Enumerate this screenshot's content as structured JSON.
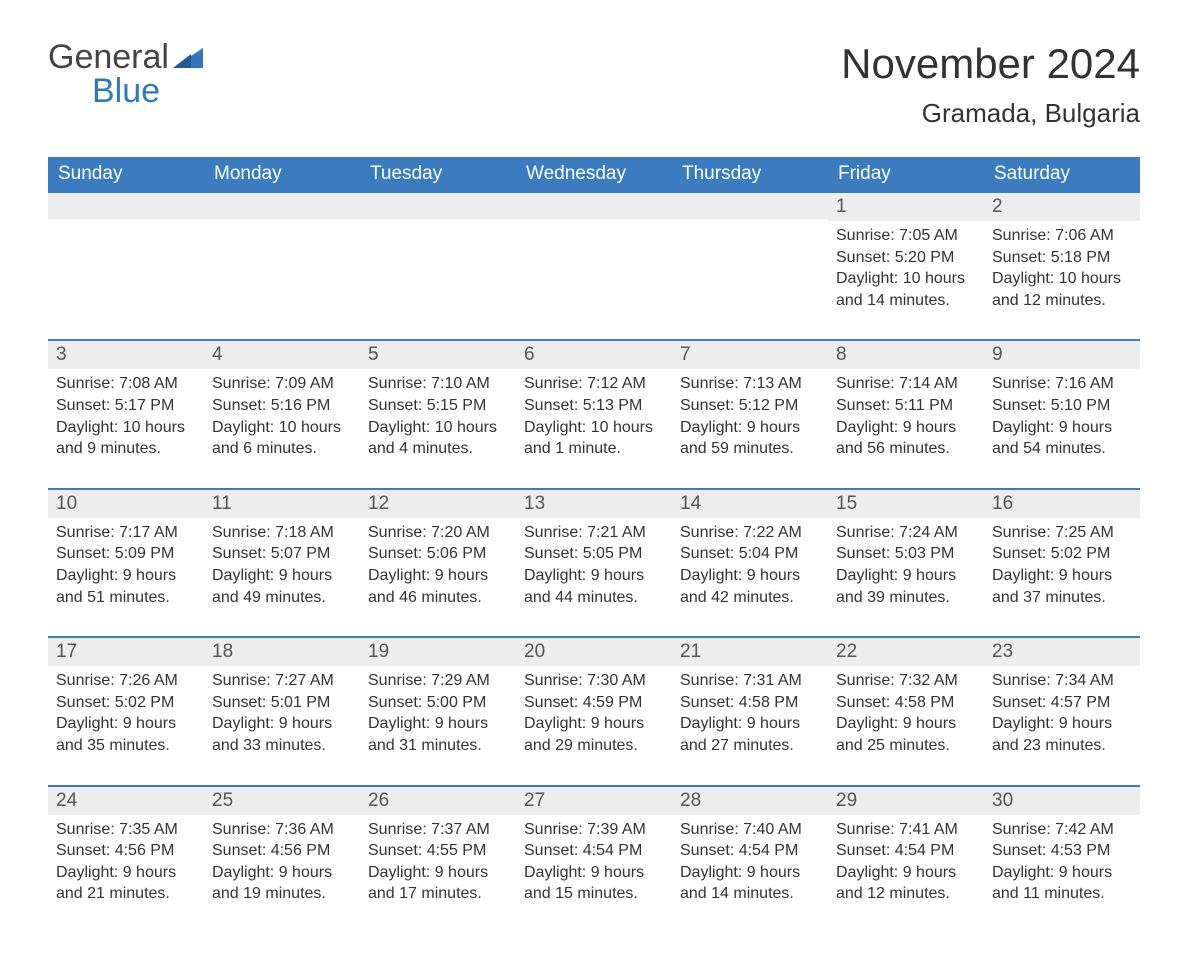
{
  "logo": {
    "word1": "General",
    "word2": "Blue"
  },
  "title": "November 2024",
  "location": "Gramada, Bulgaria",
  "colors": {
    "header_bg": "#3b7bbf",
    "header_text": "#ffffff",
    "daynum_bg": "#ededed",
    "accent_border": "#3b7bbf",
    "body_text": "#333333",
    "logo_blue": "#2f78bf",
    "logo_gray": "#444444",
    "page_bg": "#ffffff"
  },
  "day_headers": [
    "Sunday",
    "Monday",
    "Tuesday",
    "Wednesday",
    "Thursday",
    "Friday",
    "Saturday"
  ],
  "weeks": [
    [
      null,
      null,
      null,
      null,
      null,
      {
        "n": "1",
        "sr": "Sunrise: 7:05 AM",
        "ss": "Sunset: 5:20 PM",
        "d1": "Daylight: 10 hours",
        "d2": "and 14 minutes."
      },
      {
        "n": "2",
        "sr": "Sunrise: 7:06 AM",
        "ss": "Sunset: 5:18 PM",
        "d1": "Daylight: 10 hours",
        "d2": "and 12 minutes."
      }
    ],
    [
      {
        "n": "3",
        "sr": "Sunrise: 7:08 AM",
        "ss": "Sunset: 5:17 PM",
        "d1": "Daylight: 10 hours",
        "d2": "and 9 minutes."
      },
      {
        "n": "4",
        "sr": "Sunrise: 7:09 AM",
        "ss": "Sunset: 5:16 PM",
        "d1": "Daylight: 10 hours",
        "d2": "and 6 minutes."
      },
      {
        "n": "5",
        "sr": "Sunrise: 7:10 AM",
        "ss": "Sunset: 5:15 PM",
        "d1": "Daylight: 10 hours",
        "d2": "and 4 minutes."
      },
      {
        "n": "6",
        "sr": "Sunrise: 7:12 AM",
        "ss": "Sunset: 5:13 PM",
        "d1": "Daylight: 10 hours",
        "d2": "and 1 minute."
      },
      {
        "n": "7",
        "sr": "Sunrise: 7:13 AM",
        "ss": "Sunset: 5:12 PM",
        "d1": "Daylight: 9 hours",
        "d2": "and 59 minutes."
      },
      {
        "n": "8",
        "sr": "Sunrise: 7:14 AM",
        "ss": "Sunset: 5:11 PM",
        "d1": "Daylight: 9 hours",
        "d2": "and 56 minutes."
      },
      {
        "n": "9",
        "sr": "Sunrise: 7:16 AM",
        "ss": "Sunset: 5:10 PM",
        "d1": "Daylight: 9 hours",
        "d2": "and 54 minutes."
      }
    ],
    [
      {
        "n": "10",
        "sr": "Sunrise: 7:17 AM",
        "ss": "Sunset: 5:09 PM",
        "d1": "Daylight: 9 hours",
        "d2": "and 51 minutes."
      },
      {
        "n": "11",
        "sr": "Sunrise: 7:18 AM",
        "ss": "Sunset: 5:07 PM",
        "d1": "Daylight: 9 hours",
        "d2": "and 49 minutes."
      },
      {
        "n": "12",
        "sr": "Sunrise: 7:20 AM",
        "ss": "Sunset: 5:06 PM",
        "d1": "Daylight: 9 hours",
        "d2": "and 46 minutes."
      },
      {
        "n": "13",
        "sr": "Sunrise: 7:21 AM",
        "ss": "Sunset: 5:05 PM",
        "d1": "Daylight: 9 hours",
        "d2": "and 44 minutes."
      },
      {
        "n": "14",
        "sr": "Sunrise: 7:22 AM",
        "ss": "Sunset: 5:04 PM",
        "d1": "Daylight: 9 hours",
        "d2": "and 42 minutes."
      },
      {
        "n": "15",
        "sr": "Sunrise: 7:24 AM",
        "ss": "Sunset: 5:03 PM",
        "d1": "Daylight: 9 hours",
        "d2": "and 39 minutes."
      },
      {
        "n": "16",
        "sr": "Sunrise: 7:25 AM",
        "ss": "Sunset: 5:02 PM",
        "d1": "Daylight: 9 hours",
        "d2": "and 37 minutes."
      }
    ],
    [
      {
        "n": "17",
        "sr": "Sunrise: 7:26 AM",
        "ss": "Sunset: 5:02 PM",
        "d1": "Daylight: 9 hours",
        "d2": "and 35 minutes."
      },
      {
        "n": "18",
        "sr": "Sunrise: 7:27 AM",
        "ss": "Sunset: 5:01 PM",
        "d1": "Daylight: 9 hours",
        "d2": "and 33 minutes."
      },
      {
        "n": "19",
        "sr": "Sunrise: 7:29 AM",
        "ss": "Sunset: 5:00 PM",
        "d1": "Daylight: 9 hours",
        "d2": "and 31 minutes."
      },
      {
        "n": "20",
        "sr": "Sunrise: 7:30 AM",
        "ss": "Sunset: 4:59 PM",
        "d1": "Daylight: 9 hours",
        "d2": "and 29 minutes."
      },
      {
        "n": "21",
        "sr": "Sunrise: 7:31 AM",
        "ss": "Sunset: 4:58 PM",
        "d1": "Daylight: 9 hours",
        "d2": "and 27 minutes."
      },
      {
        "n": "22",
        "sr": "Sunrise: 7:32 AM",
        "ss": "Sunset: 4:58 PM",
        "d1": "Daylight: 9 hours",
        "d2": "and 25 minutes."
      },
      {
        "n": "23",
        "sr": "Sunrise: 7:34 AM",
        "ss": "Sunset: 4:57 PM",
        "d1": "Daylight: 9 hours",
        "d2": "and 23 minutes."
      }
    ],
    [
      {
        "n": "24",
        "sr": "Sunrise: 7:35 AM",
        "ss": "Sunset: 4:56 PM",
        "d1": "Daylight: 9 hours",
        "d2": "and 21 minutes."
      },
      {
        "n": "25",
        "sr": "Sunrise: 7:36 AM",
        "ss": "Sunset: 4:56 PM",
        "d1": "Daylight: 9 hours",
        "d2": "and 19 minutes."
      },
      {
        "n": "26",
        "sr": "Sunrise: 7:37 AM",
        "ss": "Sunset: 4:55 PM",
        "d1": "Daylight: 9 hours",
        "d2": "and 17 minutes."
      },
      {
        "n": "27",
        "sr": "Sunrise: 7:39 AM",
        "ss": "Sunset: 4:54 PM",
        "d1": "Daylight: 9 hours",
        "d2": "and 15 minutes."
      },
      {
        "n": "28",
        "sr": "Sunrise: 7:40 AM",
        "ss": "Sunset: 4:54 PM",
        "d1": "Daylight: 9 hours",
        "d2": "and 14 minutes."
      },
      {
        "n": "29",
        "sr": "Sunrise: 7:41 AM",
        "ss": "Sunset: 4:54 PM",
        "d1": "Daylight: 9 hours",
        "d2": "and 12 minutes."
      },
      {
        "n": "30",
        "sr": "Sunrise: 7:42 AM",
        "ss": "Sunset: 4:53 PM",
        "d1": "Daylight: 9 hours",
        "d2": "and 11 minutes."
      }
    ]
  ]
}
